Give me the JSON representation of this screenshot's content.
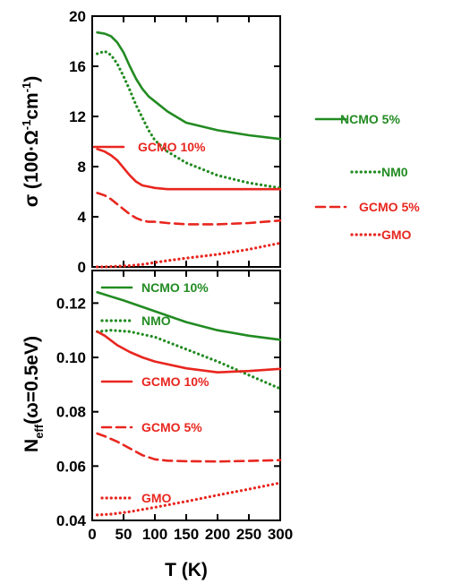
{
  "chart_data": [
    {
      "type": "line",
      "ylabel_text": "σ (100·Ω",
      "ylabel_sup1": "-1",
      "ylabel_mid": "cm",
      "ylabel_sup2": "-1",
      "ylabel_end": ")",
      "xlim": [
        0,
        300
      ],
      "ylim": [
        0,
        20
      ],
      "yticks": [
        "0",
        "4",
        "8",
        "12",
        "16",
        "20"
      ],
      "grid": false,
      "series": [
        {
          "name": "NCMO 5%",
          "color": "#228b22",
          "style": "solid",
          "x": [
            8,
            20,
            30,
            40,
            50,
            60,
            70,
            80,
            90,
            100,
            120,
            150,
            200,
            250,
            300
          ],
          "y": [
            18.7,
            18.6,
            18.4,
            17.9,
            17.1,
            16.0,
            15.0,
            14.2,
            13.6,
            13.2,
            12.4,
            11.5,
            10.9,
            10.5,
            10.2
          ]
        },
        {
          "name": "NM0",
          "color": "#228b22",
          "style": "dotted",
          "x": [
            8,
            20,
            30,
            40,
            50,
            60,
            70,
            80,
            90,
            100,
            120,
            150,
            200,
            250,
            300
          ],
          "y": [
            17.0,
            17.2,
            16.9,
            16.2,
            15.2,
            14.1,
            12.9,
            11.9,
            10.9,
            10.1,
            9.2,
            8.3,
            7.3,
            6.7,
            6.3
          ]
        },
        {
          "name": "GCMO 10%",
          "color": "#e8261f",
          "style": "solid",
          "x": [
            8,
            20,
            30,
            40,
            50,
            60,
            70,
            80,
            90,
            100,
            120,
            150,
            200,
            250,
            300
          ],
          "y": [
            9.4,
            9.2,
            8.9,
            8.5,
            7.9,
            7.3,
            6.8,
            6.5,
            6.4,
            6.3,
            6.2,
            6.2,
            6.2,
            6.2,
            6.2
          ]
        },
        {
          "name": "GCMO 5%",
          "color": "#e8261f",
          "style": "dashed",
          "x": [
            8,
            20,
            30,
            40,
            50,
            60,
            70,
            80,
            90,
            100,
            120,
            150,
            200,
            250,
            300
          ],
          "y": [
            5.9,
            5.7,
            5.4,
            5.0,
            4.6,
            4.2,
            3.9,
            3.7,
            3.6,
            3.6,
            3.5,
            3.4,
            3.4,
            3.5,
            3.7
          ]
        },
        {
          "name": "GMO",
          "color": "#e8261f",
          "style": "dotted",
          "x": [
            8,
            20,
            40,
            60,
            80,
            100,
            120,
            150,
            200,
            250,
            300
          ],
          "y": [
            0.0,
            0.0,
            0.05,
            0.1,
            0.2,
            0.35,
            0.5,
            0.7,
            1.0,
            1.4,
            1.9
          ]
        }
      ],
      "legend": [
        {
          "label": "NCMO 5%",
          "series": 0
        },
        {
          "label": "NM0",
          "series": 1
        },
        {
          "label": "GCMO 10%",
          "series": 2
        },
        {
          "label": "GCMO 5%",
          "series": 3
        },
        {
          "label": "GMO",
          "series": 4
        }
      ]
    },
    {
      "type": "line",
      "ylabel_main": "N",
      "ylabel_sub": "eff",
      "ylabel_rest": "(ω=0.5eV)",
      "xlabel": "T (K)",
      "xlim": [
        0,
        300
      ],
      "ylim": [
        0.04,
        0.132
      ],
      "xticks": [
        "0",
        "50",
        "100",
        "150",
        "200",
        "250",
        "300"
      ],
      "yticks": [
        "0.04",
        "0.06",
        "0.08",
        "0.10",
        "0.12"
      ],
      "grid": false,
      "series": [
        {
          "name": "NCMO 10%",
          "color": "#228b22",
          "style": "solid",
          "x": [
            8,
            50,
            100,
            150,
            200,
            250,
            300
          ],
          "y": [
            0.124,
            0.121,
            0.117,
            0.113,
            0.11,
            0.108,
            0.1065
          ]
        },
        {
          "name": "NMO",
          "color": "#228b22",
          "style": "dotted",
          "x": [
            8,
            30,
            60,
            100,
            150,
            200,
            250,
            300
          ],
          "y": [
            0.1095,
            0.11,
            0.1095,
            0.1075,
            0.103,
            0.0985,
            0.0935,
            0.0885
          ]
        },
        {
          "name": "GCMO 10%",
          "color": "#e8261f",
          "style": "solid",
          "x": [
            8,
            20,
            40,
            60,
            80,
            100,
            150,
            200,
            250,
            300
          ],
          "y": [
            0.1095,
            0.108,
            0.1045,
            0.102,
            0.1,
            0.0985,
            0.096,
            0.0945,
            0.095,
            0.0958
          ]
        },
        {
          "name": "GCMO 5%",
          "color": "#e8261f",
          "style": "dashed",
          "x": [
            8,
            20,
            40,
            60,
            80,
            100,
            120,
            150,
            200,
            250,
            300
          ],
          "y": [
            0.072,
            0.071,
            0.069,
            0.0665,
            0.064,
            0.0625,
            0.062,
            0.0618,
            0.0617,
            0.0619,
            0.0622
          ]
        },
        {
          "name": "GMO",
          "color": "#e8261f",
          "style": "dotted",
          "x": [
            8,
            30,
            60,
            100,
            150,
            200,
            250,
            300
          ],
          "y": [
            0.042,
            0.0423,
            0.0432,
            0.0448,
            0.047,
            0.0493,
            0.0515,
            0.0538
          ]
        }
      ],
      "legend": [
        {
          "label": "NCMO 10%",
          "series": 0
        },
        {
          "label": "NMO",
          "series": 1
        },
        {
          "label": "GCMO 10%",
          "series": 2
        },
        {
          "label": "GCMO 5%",
          "series": 3
        },
        {
          "label": "GMO",
          "series": 4
        }
      ]
    }
  ]
}
